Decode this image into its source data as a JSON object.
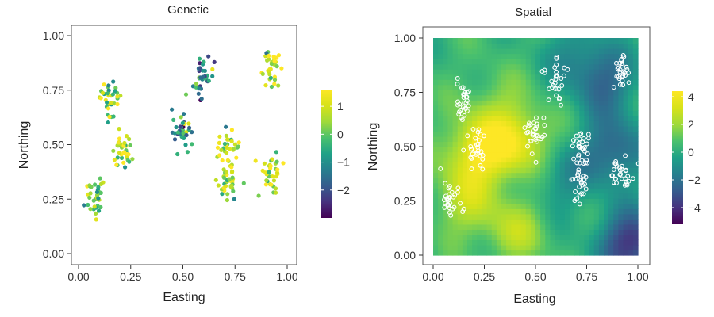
{
  "chart_data": [
    {
      "type": "scatter",
      "title": "Genetic",
      "xlabel": "Easting",
      "ylabel": "Northing",
      "xlim": [
        0,
        1
      ],
      "ylim": [
        0,
        1
      ],
      "x_ticks": [
        "0.00",
        "0.25",
        "0.50",
        "0.75",
        "1.00"
      ],
      "y_ticks": [
        "0.00",
        "0.25",
        "0.50",
        "0.75",
        "1.00"
      ],
      "grid": false,
      "colorbar": {
        "range": [
          -3,
          1.6
        ],
        "ticks": [
          1,
          0,
          -1,
          -2
        ],
        "tick_labels": [
          "1",
          "0",
          "−1",
          "−2"
        ],
        "colormap": "viridis"
      },
      "clusters": [
        {
          "x": 0.15,
          "y": 0.72,
          "mean_value": 0.4
        },
        {
          "x": 0.21,
          "y": 0.46,
          "mean_value": 0.7
        },
        {
          "x": 0.08,
          "y": 0.26,
          "mean_value": 0.2
        },
        {
          "x": 0.5,
          "y": 0.56,
          "mean_value": -1.0
        },
        {
          "x": 0.6,
          "y": 0.8,
          "mean_value": -1.2
        },
        {
          "x": 0.72,
          "y": 0.48,
          "mean_value": 0.9
        },
        {
          "x": 0.71,
          "y": 0.34,
          "mean_value": 0.5
        },
        {
          "x": 0.92,
          "y": 0.84,
          "mean_value": 0.9
        },
        {
          "x": 0.92,
          "y": 0.38,
          "mean_value": 1.0
        }
      ],
      "points_per_cluster": 36
    },
    {
      "type": "heatmap",
      "title": "Spatial",
      "xlabel": "Easting",
      "ylabel": "Northing",
      "xlim": [
        0,
        1
      ],
      "ylim": [
        0,
        1
      ],
      "x_ticks": [
        "0.00",
        "0.25",
        "0.50",
        "0.75",
        "1.00"
      ],
      "y_ticks": [
        "0.00",
        "0.25",
        "0.50",
        "0.75",
        "1.00"
      ],
      "grid": false,
      "colorbar": {
        "range": [
          -5.2,
          4.4
        ],
        "ticks": [
          4,
          2,
          0,
          -2,
          -4
        ],
        "tick_labels": [
          "4",
          "2",
          "0",
          "−2",
          "−4"
        ],
        "colormap": "viridis"
      },
      "field_features": [
        {
          "x": 0.22,
          "y": 0.48,
          "value": 3.5
        },
        {
          "x": 0.42,
          "y": 0.52,
          "value": 3.0
        },
        {
          "x": 0.15,
          "y": 0.25,
          "value": 2.0
        },
        {
          "x": 0.4,
          "y": 0.12,
          "value": 2.0
        },
        {
          "x": 0.3,
          "y": 0.7,
          "value": 1.0
        },
        {
          "x": 0.85,
          "y": 0.8,
          "value": -2.5
        },
        {
          "x": 0.88,
          "y": 0.48,
          "value": -3.0
        },
        {
          "x": 0.97,
          "y": 0.05,
          "value": -4.5
        },
        {
          "x": 0.62,
          "y": 0.35,
          "value": -1.5
        },
        {
          "x": 0.7,
          "y": 0.92,
          "value": -1.5
        }
      ],
      "sample_clusters": [
        {
          "x": 0.15,
          "y": 0.72
        },
        {
          "x": 0.21,
          "y": 0.46
        },
        {
          "x": 0.08,
          "y": 0.26
        },
        {
          "x": 0.5,
          "y": 0.56
        },
        {
          "x": 0.6,
          "y": 0.8
        },
        {
          "x": 0.72,
          "y": 0.48
        },
        {
          "x": 0.71,
          "y": 0.34
        },
        {
          "x": 0.92,
          "y": 0.84
        },
        {
          "x": 0.92,
          "y": 0.38
        }
      ],
      "sample_marker": "open-circle-white"
    }
  ]
}
